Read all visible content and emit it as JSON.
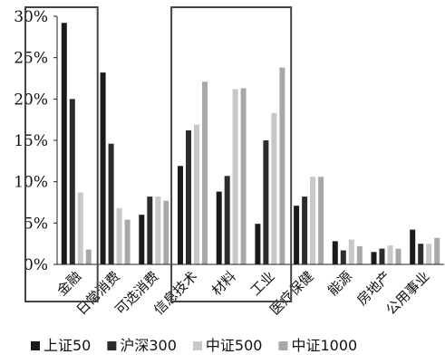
{
  "chart_data": {
    "type": "bar",
    "categories": [
      "金融",
      "日常消费",
      "可选消费",
      "信息技术",
      "材料",
      "工业",
      "医疗保健",
      "能源",
      "房地产",
      "公用事业"
    ],
    "series": [
      {
        "name": "上证50",
        "color": "#1a1a1a",
        "values": [
          29.2,
          23.2,
          6.0,
          11.9,
          8.8,
          4.9,
          7.1,
          2.8,
          1.5,
          4.2
        ]
      },
      {
        "name": "沪深300",
        "color": "#2c2c2c",
        "values": [
          20.0,
          14.6,
          8.2,
          16.2,
          10.7,
          15.0,
          8.2,
          1.7,
          1.9,
          2.5
        ]
      },
      {
        "name": "中证500",
        "color": "#c8c8c8",
        "values": [
          8.7,
          6.8,
          8.2,
          16.9,
          21.2,
          18.3,
          10.6,
          3.0,
          2.3,
          2.5
        ]
      },
      {
        "name": "中证1000",
        "color": "#a8a8a8",
        "values": [
          1.8,
          5.4,
          7.7,
          22.1,
          21.3,
          23.8,
          10.6,
          2.2,
          1.9,
          3.2
        ]
      }
    ],
    "ylim": [
      0,
      30
    ],
    "yticks": [
      0,
      5,
      10,
      15,
      20,
      25,
      30
    ],
    "ytick_labels": [
      "0%",
      "5%",
      "10%",
      "15%",
      "20%",
      "25%",
      "30%"
    ],
    "grid": false,
    "legend_position": "bottom",
    "highlight_groups": [
      [
        "金融"
      ],
      [
        "信息技术",
        "材料",
        "工业"
      ]
    ]
  }
}
